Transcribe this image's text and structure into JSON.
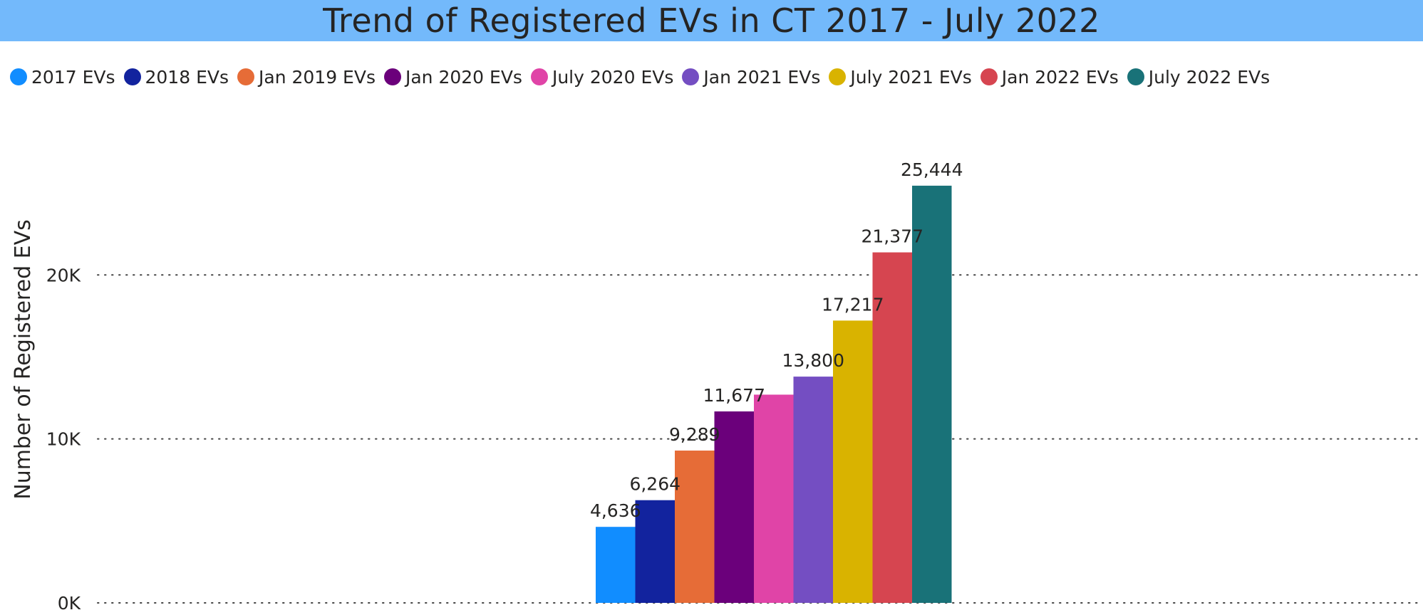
{
  "chart_data": {
    "type": "bar",
    "title": "Trend of Registered EVs in CT 2017 - July 2022",
    "ylabel": "Number of Registered EVs",
    "xlabel": "",
    "ylim": [
      0,
      28000
    ],
    "yticks": [
      0,
      10000,
      20000
    ],
    "ytick_labels": [
      "0K",
      "10K",
      "20K"
    ],
    "grid": true,
    "legend_position": "top",
    "series": [
      {
        "name": "2017 EVs",
        "value": 4636,
        "label": "4,636",
        "color": "#118dff"
      },
      {
        "name": "2018 EVs",
        "value": 6264,
        "label": "6,264",
        "color": "#12239e"
      },
      {
        "name": "Jan 2019 EVs",
        "value": 9289,
        "label": "9,289",
        "color": "#e66c37"
      },
      {
        "name": "Jan 2020 EVs",
        "value": 11677,
        "label": "11,677",
        "color": "#6b007b"
      },
      {
        "name": "July 2020 EVs",
        "value": 12700,
        "label": "",
        "color": "#e044a7"
      },
      {
        "name": "Jan 2021 EVs",
        "value": 13800,
        "label": "13,800",
        "color": "#744ec2"
      },
      {
        "name": "July 2021 EVs",
        "value": 17217,
        "label": "17,217",
        "color": "#d9b300"
      },
      {
        "name": "Jan 2022 EVs",
        "value": 21377,
        "label": "21,377",
        "color": "#d64550"
      },
      {
        "name": "July 2022 EVs",
        "value": 25444,
        "label": "25,444",
        "color": "#197278"
      }
    ]
  }
}
